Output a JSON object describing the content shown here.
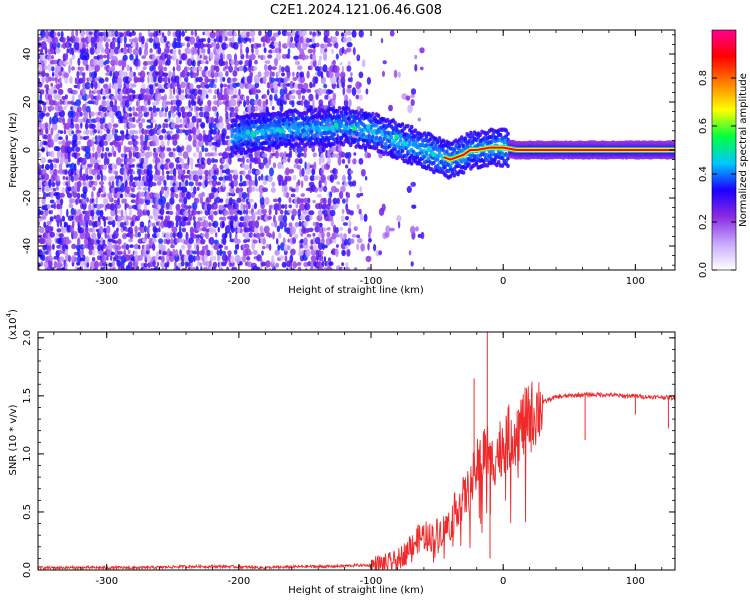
{
  "figure": {
    "title": "C2E1.2024.121.06.46.G08"
  },
  "chart_data": [
    {
      "id": "spectrogram",
      "type": "heatmap",
      "xlabel": "Height of straight line (km)",
      "ylabel": "Frequency (Hz)",
      "xlim": [
        -352,
        130
      ],
      "ylim": [
        -50,
        50
      ],
      "x_ticks": [
        -300,
        -200,
        -100,
        0,
        100
      ],
      "x_tick_labels": [
        "-300",
        "-200",
        "-100",
        "0",
        "100"
      ],
      "y_ticks": [
        -40,
        -20,
        0,
        20,
        40
      ],
      "y_tick_labels": [
        "-40",
        "-20",
        "0",
        "20",
        "40"
      ],
      "colorbar": {
        "label": "Normalized spectral amplitude",
        "range": [
          0,
          1
        ],
        "ticks": [
          0.0,
          0.2,
          0.4,
          0.6,
          0.8
        ],
        "tick_labels": [
          "0.0",
          "0.2",
          "0.4",
          "0.6",
          "0.8"
        ],
        "colormap": [
          "#ffffff",
          "#c8a8ff",
          "#8a2be2",
          "#1a00ff",
          "#00c8ff",
          "#00ff40",
          "#ffff00",
          "#ff8000",
          "#ff0000",
          "#ff0090"
        ]
      },
      "signal_track": {
        "x": [
          -200,
          -180,
          -160,
          -140,
          -120,
          -110,
          -100,
          -90,
          -80,
          -70,
          -60,
          -50,
          -40,
          -30,
          -25,
          -20,
          -10,
          0,
          10,
          50,
          100,
          130
        ],
        "y": [
          6,
          8,
          9,
          9,
          10,
          9,
          8,
          6,
          4,
          2,
          0,
          -2,
          -4,
          -2,
          0,
          0,
          1,
          1,
          0,
          0,
          0,
          0
        ]
      }
    },
    {
      "id": "snr",
      "type": "line",
      "xlabel": "Height of straight line (km)",
      "ylabel": "SNR (10 * v/v)",
      "y_multiplier": "(x10",
      "y_multiplier_exp": "4",
      "y_multiplier_close": ")",
      "xlim": [
        -352,
        130
      ],
      "ylim": [
        0,
        2.05
      ],
      "x_ticks": [
        -300,
        -200,
        -100,
        0,
        100
      ],
      "x_tick_labels": [
        "-300",
        "-200",
        "-100",
        "0",
        "100"
      ],
      "y_ticks": [
        0.0,
        0.5,
        1.0,
        1.5,
        2.0
      ],
      "y_tick_labels": [
        "0.0",
        "0.5",
        "1.0",
        "1.5",
        "2.0"
      ],
      "line_color": "#ee2a2a",
      "series": [
        {
          "x": [
            -352,
            -330,
            -300,
            -270,
            -240,
            -210,
            -180,
            -150,
            -130,
            -110,
            -100,
            -90,
            -80,
            -75,
            -70,
            -65,
            -60,
            -55,
            -50,
            -45,
            -40,
            -35,
            -30,
            -25,
            -20,
            -15,
            -12,
            -10,
            -5,
            0,
            5,
            10,
            15,
            20,
            25,
            30,
            35,
            40,
            50,
            60,
            70,
            80,
            90,
            100,
            110,
            120,
            130
          ],
          "y": [
            0.02,
            0.02,
            0.02,
            0.02,
            0.03,
            0.03,
            0.02,
            0.03,
            0.03,
            0.04,
            0.04,
            0.05,
            0.08,
            0.14,
            0.22,
            0.26,
            0.3,
            0.28,
            0.32,
            0.35,
            0.4,
            0.55,
            0.62,
            0.7,
            0.88,
            1.0,
            1.05,
            0.9,
            1.0,
            1.1,
            1.15,
            1.2,
            1.25,
            1.3,
            1.38,
            1.44,
            1.47,
            1.49,
            1.5,
            1.51,
            1.51,
            1.51,
            1.5,
            1.5,
            1.49,
            1.49,
            1.48
          ]
        }
      ],
      "spikes": [
        {
          "x": -22,
          "y": 1.65
        },
        {
          "x": -12,
          "y": 2.05
        },
        {
          "x": -10,
          "y": 0.1
        },
        {
          "x": 62,
          "y": 1.12
        },
        {
          "x": 100,
          "y": 1.34
        },
        {
          "x": 125,
          "y": 1.22
        }
      ]
    }
  ]
}
